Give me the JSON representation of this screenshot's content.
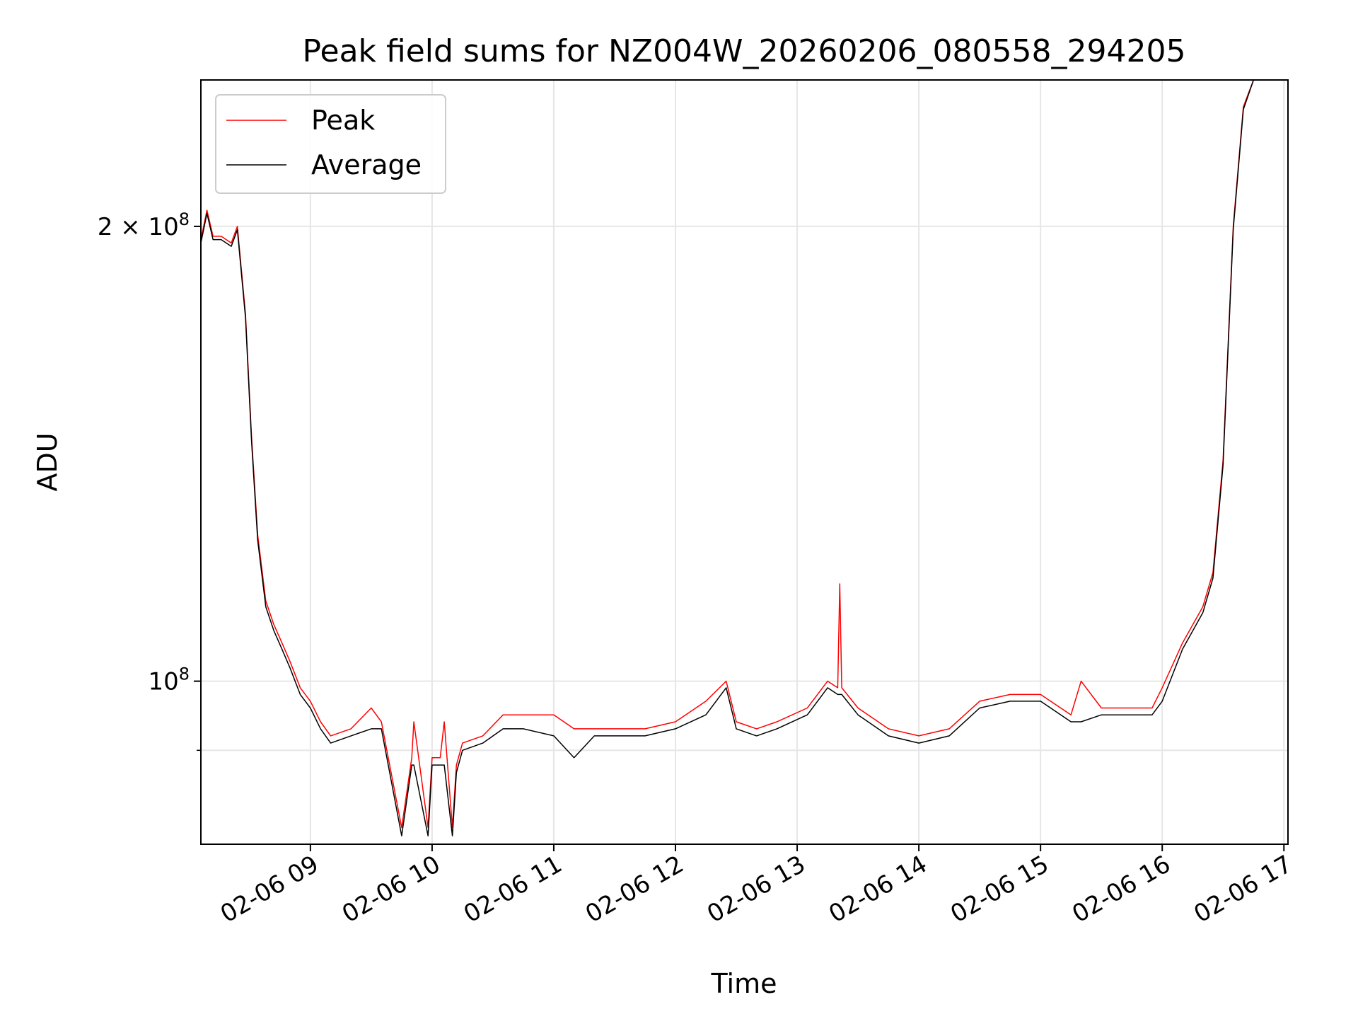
{
  "chart_data": {
    "type": "line",
    "title": "Peak field sums for NZ004W_20260206_080558_294205",
    "xlabel": "Time",
    "ylabel": "ADU",
    "y_scale": "log",
    "ylim": [
      78000000,
      250000000
    ],
    "xlim": [
      "2026-02-06 08:06",
      "2026-02-06 17:02"
    ],
    "x_ticks": [
      "02-06 09",
      "02-06 10",
      "02-06 11",
      "02-06 12",
      "02-06 13",
      "02-06 14",
      "02-06 15",
      "02-06 16",
      "02-06 17"
    ],
    "y_tick_labels": [
      {
        "value": 100000000,
        "base": "10",
        "exp": "8",
        "prefix": ""
      },
      {
        "value": 200000000,
        "base": "10",
        "exp": "8",
        "prefix": "2 × "
      }
    ],
    "y_minor_ticks": [
      90000000
    ],
    "grid": true,
    "legend": "top-left",
    "series": [
      {
        "name": "Peak",
        "color": "#ff0000",
        "x": [
          "2026-02-06 08:06",
          "2026-02-06 08:09",
          "2026-02-06 08:12",
          "2026-02-06 08:16",
          "2026-02-06 08:21",
          "2026-02-06 08:24",
          "2026-02-06 08:28",
          "2026-02-06 08:31",
          "2026-02-06 08:34",
          "2026-02-06 08:38",
          "2026-02-06 08:42",
          "2026-02-06 08:46",
          "2026-02-06 08:50",
          "2026-02-06 08:55",
          "2026-02-06 09:00",
          "2026-02-06 09:05",
          "2026-02-06 09:10",
          "2026-02-06 09:20",
          "2026-02-06 09:30",
          "2026-02-06 09:35",
          "2026-02-06 09:45",
          "2026-02-06 09:50",
          "2026-02-06 09:51",
          "2026-02-06 09:58",
          "2026-02-06 10:00",
          "2026-02-06 10:04",
          "2026-02-06 10:06",
          "2026-02-06 10:10",
          "2026-02-06 10:12",
          "2026-02-06 10:15",
          "2026-02-06 10:25",
          "2026-02-06 10:35",
          "2026-02-06 10:45",
          "2026-02-06 11:00",
          "2026-02-06 11:10",
          "2026-02-06 11:20",
          "2026-02-06 11:30",
          "2026-02-06 11:45",
          "2026-02-06 12:00",
          "2026-02-06 12:15",
          "2026-02-06 12:25",
          "2026-02-06 12:30",
          "2026-02-06 12:40",
          "2026-02-06 12:50",
          "2026-02-06 13:05",
          "2026-02-06 13:15",
          "2026-02-06 13:20",
          "2026-02-06 13:21",
          "2026-02-06 13:22",
          "2026-02-06 13:30",
          "2026-02-06 13:45",
          "2026-02-06 14:00",
          "2026-02-06 14:15",
          "2026-02-06 14:30",
          "2026-02-06 14:45",
          "2026-02-06 15:00",
          "2026-02-06 15:15",
          "2026-02-06 15:20",
          "2026-02-06 15:30",
          "2026-02-06 15:45",
          "2026-02-06 15:55",
          "2026-02-06 16:00",
          "2026-02-06 16:10",
          "2026-02-06 16:20",
          "2026-02-06 16:25",
          "2026-02-06 16:30",
          "2026-02-06 16:35",
          "2026-02-06 16:40",
          "2026-02-06 16:45",
          "2026-02-06 16:50",
          "2026-02-06 16:55"
        ],
        "y": [
          196000000,
          205000000,
          197000000,
          197000000,
          195000000,
          200000000,
          175000000,
          145000000,
          125000000,
          113000000,
          109000000,
          106000000,
          103000000,
          99000000,
          97000000,
          94000000,
          92000000,
          93000000,
          96000000,
          94000000,
          80000000,
          89000000,
          94000000,
          80000000,
          89000000,
          89000000,
          94000000,
          80000000,
          88000000,
          91000000,
          92000000,
          95000000,
          95000000,
          95000000,
          93000000,
          93000000,
          93000000,
          93000000,
          94000000,
          97000000,
          100000000,
          94000000,
          93000000,
          94000000,
          96000000,
          100000000,
          99000000,
          116000000,
          99000000,
          96000000,
          93000000,
          92000000,
          93000000,
          97000000,
          98000000,
          98000000,
          95000000,
          100000000,
          96000000,
          96000000,
          96000000,
          99000000,
          106000000,
          112000000,
          118000000,
          140000000,
          200000000,
          240000000,
          250000000,
          250000000,
          250000000
        ]
      },
      {
        "name": "Average",
        "color": "#000000",
        "x": [
          "2026-02-06 08:06",
          "2026-02-06 08:09",
          "2026-02-06 08:12",
          "2026-02-06 08:16",
          "2026-02-06 08:21",
          "2026-02-06 08:24",
          "2026-02-06 08:28",
          "2026-02-06 08:31",
          "2026-02-06 08:34",
          "2026-02-06 08:38",
          "2026-02-06 08:42",
          "2026-02-06 08:46",
          "2026-02-06 08:50",
          "2026-02-06 08:55",
          "2026-02-06 09:00",
          "2026-02-06 09:05",
          "2026-02-06 09:10",
          "2026-02-06 09:20",
          "2026-02-06 09:30",
          "2026-02-06 09:35",
          "2026-02-06 09:45",
          "2026-02-06 09:50",
          "2026-02-06 09:51",
          "2026-02-06 09:58",
          "2026-02-06 10:00",
          "2026-02-06 10:04",
          "2026-02-06 10:06",
          "2026-02-06 10:10",
          "2026-02-06 10:12",
          "2026-02-06 10:15",
          "2026-02-06 10:25",
          "2026-02-06 10:35",
          "2026-02-06 10:45",
          "2026-02-06 11:00",
          "2026-02-06 11:10",
          "2026-02-06 11:20",
          "2026-02-06 11:30",
          "2026-02-06 11:45",
          "2026-02-06 12:00",
          "2026-02-06 12:15",
          "2026-02-06 12:25",
          "2026-02-06 12:30",
          "2026-02-06 12:40",
          "2026-02-06 12:50",
          "2026-02-06 13:05",
          "2026-02-06 13:15",
          "2026-02-06 13:20",
          "2026-02-06 13:21",
          "2026-02-06 13:22",
          "2026-02-06 13:30",
          "2026-02-06 13:45",
          "2026-02-06 14:00",
          "2026-02-06 14:15",
          "2026-02-06 14:30",
          "2026-02-06 14:45",
          "2026-02-06 15:00",
          "2026-02-06 15:15",
          "2026-02-06 15:20",
          "2026-02-06 15:30",
          "2026-02-06 15:45",
          "2026-02-06 15:55",
          "2026-02-06 16:00",
          "2026-02-06 16:10",
          "2026-02-06 16:20",
          "2026-02-06 16:25",
          "2026-02-06 16:30",
          "2026-02-06 16:35",
          "2026-02-06 16:40",
          "2026-02-06 16:45",
          "2026-02-06 16:50",
          "2026-02-06 16:55"
        ],
        "y": [
          195000000,
          204000000,
          196000000,
          196000000,
          194000000,
          199000000,
          174000000,
          144000000,
          124000000,
          112000000,
          108000000,
          105000000,
          102000000,
          98000000,
          96000000,
          93000000,
          91000000,
          92000000,
          93000000,
          93000000,
          79000000,
          88000000,
          88000000,
          79000000,
          88000000,
          88000000,
          88000000,
          79000000,
          87000000,
          90000000,
          91000000,
          93000000,
          93000000,
          92000000,
          89000000,
          92000000,
          92000000,
          92000000,
          93000000,
          95000000,
          99000000,
          93000000,
          92000000,
          93000000,
          95000000,
          99000000,
          98000000,
          98000000,
          98000000,
          95000000,
          92000000,
          91000000,
          92000000,
          96000000,
          97000000,
          97000000,
          94000000,
          94000000,
          95000000,
          95000000,
          95000000,
          97000000,
          105000000,
          111000000,
          117000000,
          139000000,
          199000000,
          239000000,
          250000000,
          250000000,
          250000000
        ]
      }
    ]
  }
}
